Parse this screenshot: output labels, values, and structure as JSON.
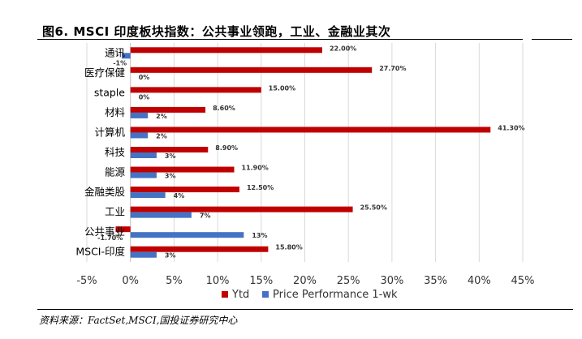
{
  "title": "图6. MSCI 印度板块指数：公共事业领跑，工业、金融业其次",
  "source": "资料来源：FactSet,MSCI,国投证券研究中心",
  "colors": {
    "ytd": "#C00000",
    "weekly": "#4472C4",
    "grid": "#d9d9d9",
    "axis": "#bfbfbf"
  },
  "chart_data": {
    "type": "bar",
    "orientation": "horizontal",
    "title": "图6. MSCI 印度板块指数：公共事业领跑，工业、金融业其次",
    "xlabel": "",
    "ylabel": "",
    "xlim": [
      -5,
      45
    ],
    "xticks": [
      -5,
      0,
      5,
      10,
      15,
      20,
      25,
      30,
      35,
      40,
      45
    ],
    "xtick_labels": [
      "-5%",
      "0%",
      "5%",
      "10%",
      "15%",
      "20%",
      "25%",
      "30%",
      "35%",
      "40%",
      "45%"
    ],
    "grid": true,
    "legend_position": "bottom",
    "categories": [
      "通讯",
      "医疗保健",
      "staple",
      "材料",
      "计算机",
      "科技",
      "能源",
      "金融类股",
      "工业",
      "公共事业",
      "MSCI-印度"
    ],
    "series": [
      {
        "name": "Ytd",
        "values": [
          22.0,
          27.7,
          15.0,
          8.6,
          41.3,
          8.9,
          11.9,
          12.5,
          25.5,
          -1.7,
          15.8
        ],
        "labels": [
          "22.00%",
          "27.70%",
          "15.00%",
          "8.60%",
          "41.30%",
          "8.90%",
          "11.90%",
          "12.50%",
          "25.50%",
          "-1.70%",
          "15.80%"
        ]
      },
      {
        "name": "Price Performance 1-wk",
        "values": [
          -1,
          0,
          0,
          2,
          2,
          3,
          3,
          4,
          7,
          13,
          3
        ],
        "labels": [
          "-1%",
          "0%",
          "0%",
          "2%",
          "2%",
          "3%",
          "3%",
          "4%",
          "7%",
          "13%",
          "3%"
        ]
      }
    ]
  }
}
